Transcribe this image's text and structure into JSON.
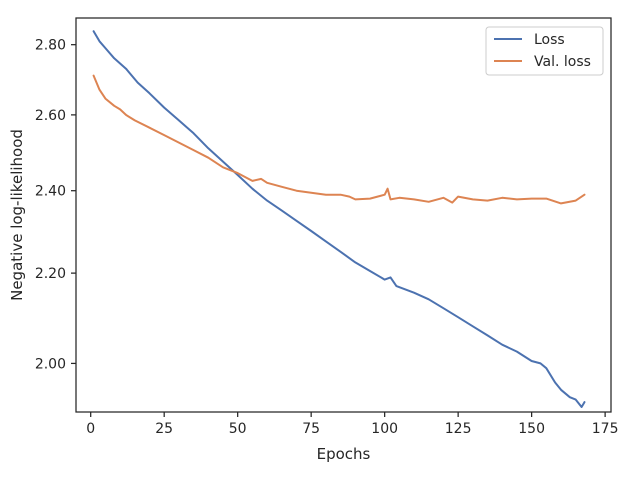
{
  "chart_data": {
    "type": "line",
    "title": "",
    "xlabel": "Epochs",
    "ylabel": "Negative log-likelihood",
    "xlim": [
      -5,
      177
    ],
    "ylim": [
      1.9,
      2.88
    ],
    "y_scale": "log",
    "grid": false,
    "legend_position": "top-right",
    "x_ticks": [
      0,
      25,
      50,
      75,
      100,
      125,
      150,
      175
    ],
    "x_tick_labels": [
      "0",
      "25",
      "50",
      "75",
      "100",
      "125",
      "150",
      "175"
    ],
    "y_ticks": [
      2.0,
      2.2,
      2.4,
      2.6,
      2.8
    ],
    "y_tick_labels": [
      "2.00",
      "2.20",
      "2.40",
      "2.60",
      "2.80"
    ],
    "series": [
      {
        "name": "Loss",
        "color": "#4c72b0",
        "points": [
          [
            1,
            2.84
          ],
          [
            3,
            2.81
          ],
          [
            5,
            2.79
          ],
          [
            8,
            2.76
          ],
          [
            12,
            2.73
          ],
          [
            16,
            2.69
          ],
          [
            20,
            2.66
          ],
          [
            25,
            2.62
          ],
          [
            30,
            2.585
          ],
          [
            35,
            2.55
          ],
          [
            40,
            2.51
          ],
          [
            45,
            2.475
          ],
          [
            50,
            2.44
          ],
          [
            55,
            2.405
          ],
          [
            60,
            2.375
          ],
          [
            65,
            2.35
          ],
          [
            70,
            2.325
          ],
          [
            75,
            2.3
          ],
          [
            80,
            2.275
          ],
          [
            85,
            2.25
          ],
          [
            90,
            2.225
          ],
          [
            95,
            2.205
          ],
          [
            100,
            2.185
          ],
          [
            102,
            2.19
          ],
          [
            104,
            2.17
          ],
          [
            110,
            2.155
          ],
          [
            115,
            2.14
          ],
          [
            120,
            2.12
          ],
          [
            125,
            2.1
          ],
          [
            130,
            2.08
          ],
          [
            135,
            2.06
          ],
          [
            140,
            2.04
          ],
          [
            145,
            2.025
          ],
          [
            150,
            2.005
          ],
          [
            153,
            2.0
          ],
          [
            155,
            1.99
          ],
          [
            158,
            1.96
          ],
          [
            160,
            1.945
          ],
          [
            163,
            1.93
          ],
          [
            165,
            1.925
          ],
          [
            167,
            1.91
          ],
          [
            168,
            1.92
          ]
        ]
      },
      {
        "name": "Val. loss",
        "color": "#dd8452",
        "points": [
          [
            1,
            2.71
          ],
          [
            3,
            2.67
          ],
          [
            5,
            2.645
          ],
          [
            8,
            2.625
          ],
          [
            10,
            2.615
          ],
          [
            12,
            2.6
          ],
          [
            15,
            2.585
          ],
          [
            20,
            2.565
          ],
          [
            25,
            2.545
          ],
          [
            30,
            2.525
          ],
          [
            35,
            2.505
          ],
          [
            40,
            2.485
          ],
          [
            45,
            2.46
          ],
          [
            50,
            2.445
          ],
          [
            55,
            2.425
          ],
          [
            58,
            2.43
          ],
          [
            60,
            2.42
          ],
          [
            65,
            2.41
          ],
          [
            70,
            2.4
          ],
          [
            75,
            2.395
          ],
          [
            80,
            2.39
          ],
          [
            85,
            2.39
          ],
          [
            88,
            2.385
          ],
          [
            90,
            2.378
          ],
          [
            95,
            2.38
          ],
          [
            100,
            2.39
          ],
          [
            101,
            2.405
          ],
          [
            102,
            2.378
          ],
          [
            105,
            2.382
          ],
          [
            110,
            2.378
          ],
          [
            115,
            2.372
          ],
          [
            120,
            2.382
          ],
          [
            123,
            2.37
          ],
          [
            125,
            2.385
          ],
          [
            130,
            2.378
          ],
          [
            135,
            2.375
          ],
          [
            140,
            2.382
          ],
          [
            145,
            2.378
          ],
          [
            150,
            2.38
          ],
          [
            155,
            2.38
          ],
          [
            160,
            2.368
          ],
          [
            165,
            2.375
          ],
          [
            168,
            2.39
          ]
        ]
      }
    ]
  }
}
